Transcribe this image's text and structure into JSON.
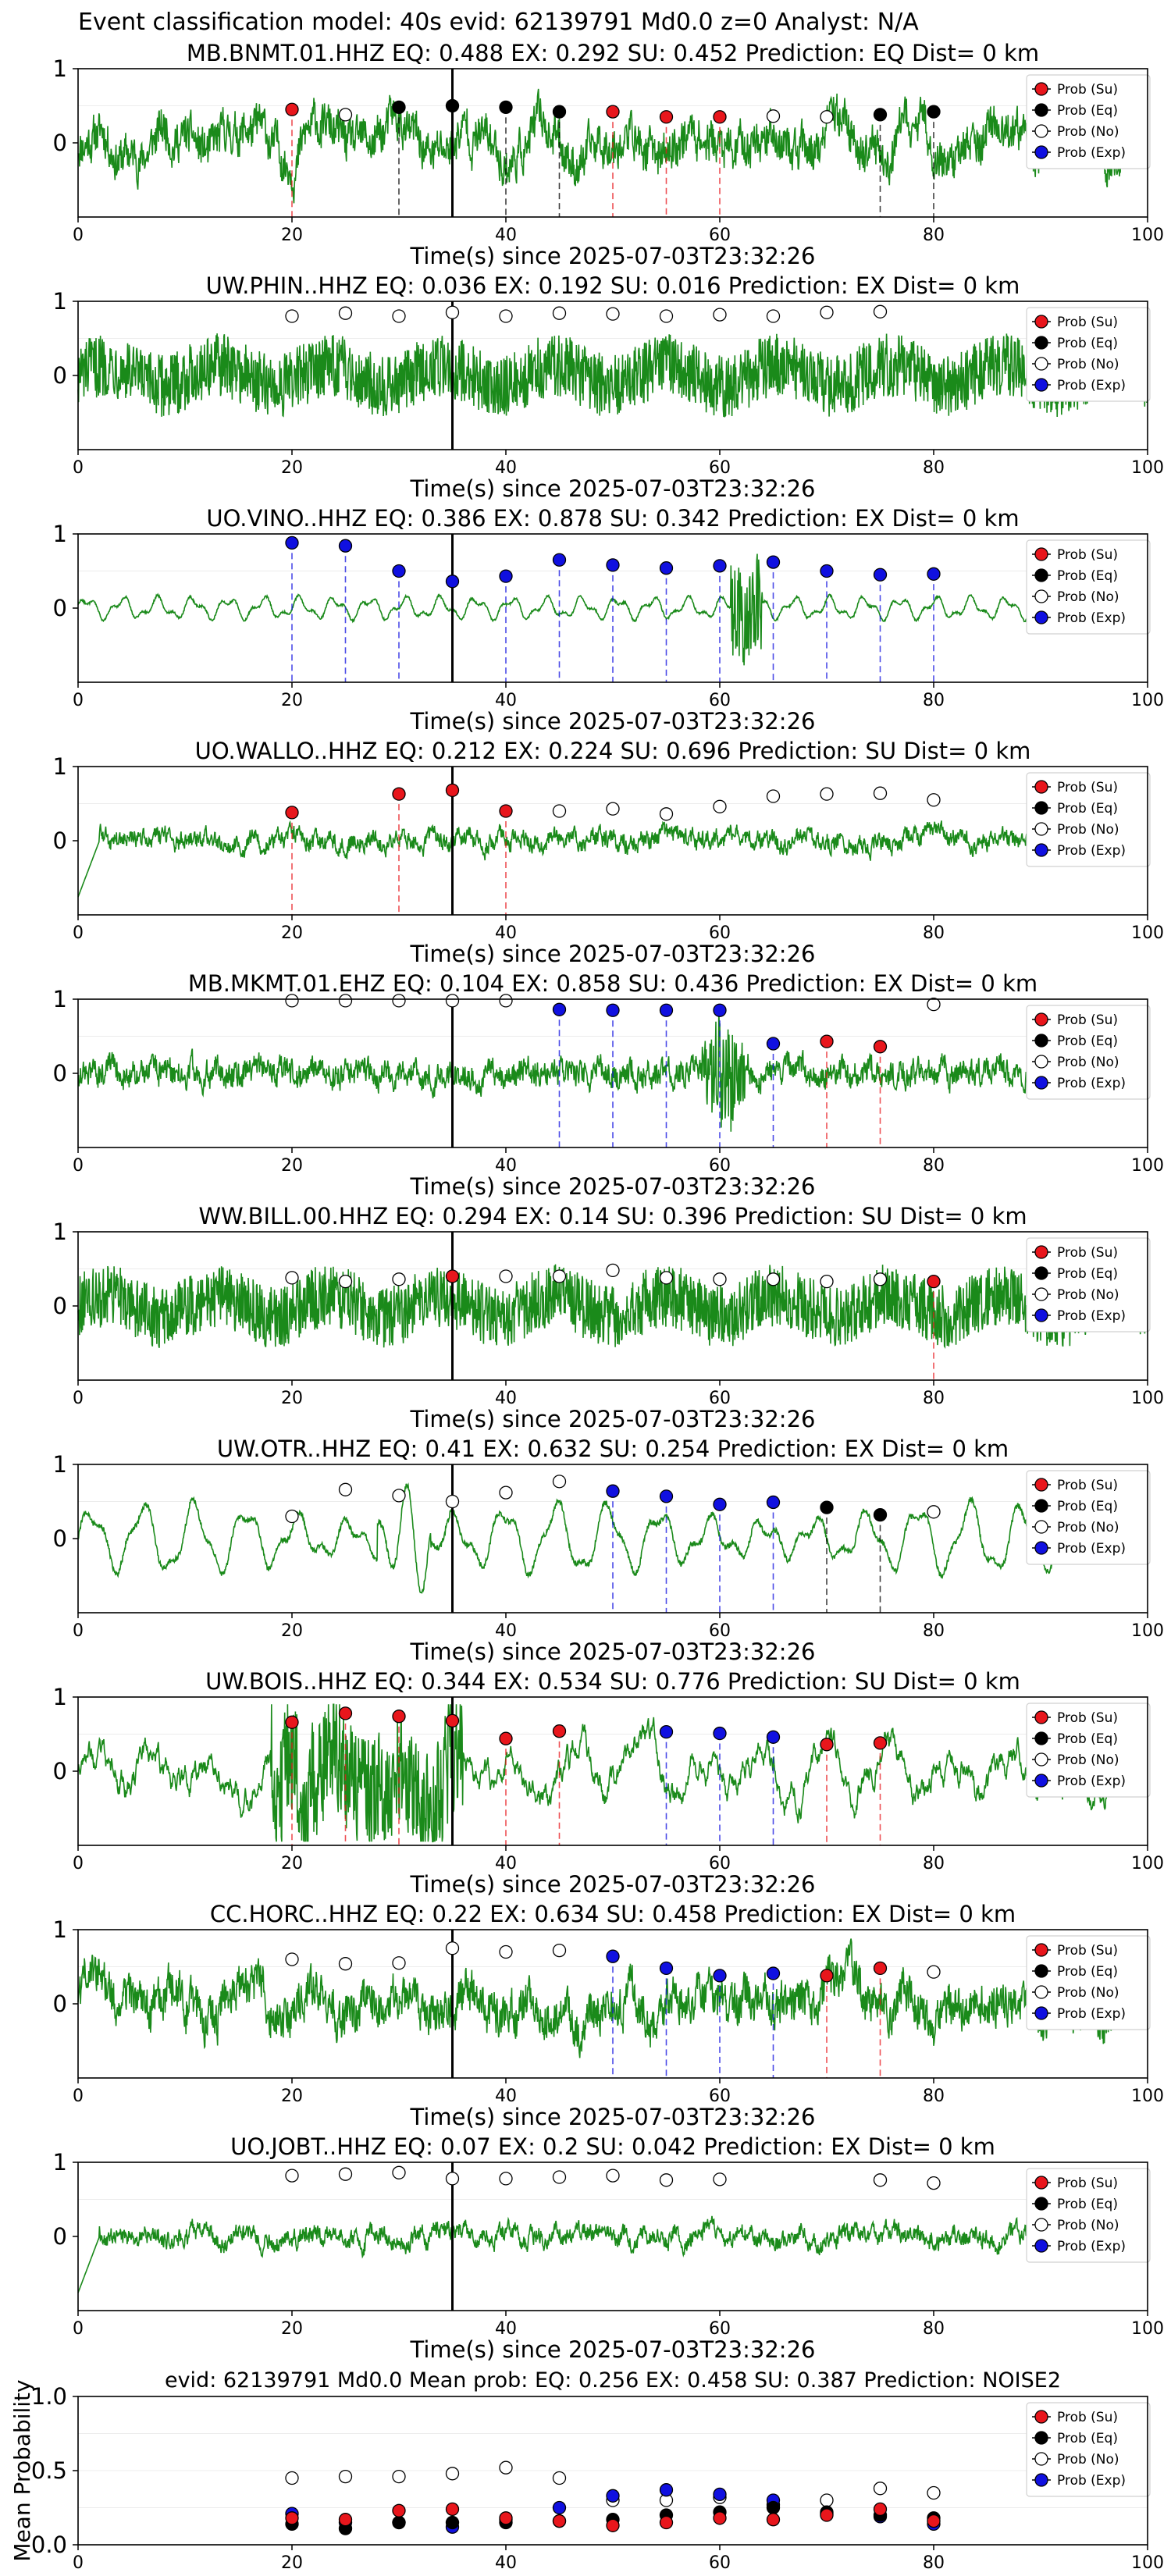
{
  "figure": {
    "title": "Event classification model: 40s evid: 62139791 Md0.0 z=0 Analyst: N/A"
  },
  "legend_labels": [
    "Prob (Su)",
    "Prob (Eq)",
    "Prob (No)",
    "Prob (Exp)"
  ],
  "colors": {
    "su": "#e8161c",
    "eq": "#000000",
    "no": "#ffffff",
    "exp": "#1010e0",
    "waveform": "#1a8a1a"
  },
  "chart_data": [
    {
      "type": "line",
      "title": "MB.BNMT.01.HHZ   EQ: 0.488  EX: 0.292  SU: 0.452   Prediction: EQ    Dist= 0 km",
      "xlabel": "Time(s) since 2025-07-03T23:32:26",
      "xlim": [
        0,
        100
      ],
      "ylim": [
        -1,
        1
      ],
      "xticks": [
        "0",
        "20",
        "40",
        "60",
        "80",
        "100"
      ],
      "yticks": [
        "1",
        "0"
      ],
      "pick_time": 35,
      "style": "noisy",
      "points": [
        {
          "t": 20,
          "cls": "su",
          "p": 0.45
        },
        {
          "t": 25,
          "cls": "no",
          "p": 0.38
        },
        {
          "t": 30,
          "cls": "eq",
          "p": 0.48
        },
        {
          "t": 35,
          "cls": "eq",
          "p": 0.5
        },
        {
          "t": 40,
          "cls": "eq",
          "p": 0.48
        },
        {
          "t": 45,
          "cls": "eq",
          "p": 0.42
        },
        {
          "t": 50,
          "cls": "su",
          "p": 0.42
        },
        {
          "t": 55,
          "cls": "su",
          "p": 0.35
        },
        {
          "t": 60,
          "cls": "su",
          "p": 0.35
        },
        {
          "t": 65,
          "cls": "no",
          "p": 0.36
        },
        {
          "t": 70,
          "cls": "no",
          "p": 0.35
        },
        {
          "t": 75,
          "cls": "eq",
          "p": 0.38
        },
        {
          "t": 80,
          "cls": "eq",
          "p": 0.42
        }
      ]
    },
    {
      "type": "line",
      "title": "UW.PHIN..HHZ   EQ: 0.036  EX: 0.192  SU: 0.016   Prediction: EX    Dist= 0 km",
      "xlabel": "Time(s) since 2025-07-03T23:32:26",
      "xlim": [
        0,
        100
      ],
      "ylim": [
        -1,
        1
      ],
      "xticks": [
        "0",
        "20",
        "40",
        "60",
        "80",
        "100"
      ],
      "yticks": [
        "1",
        "0"
      ],
      "pick_time": 35,
      "style": "dense",
      "points": [
        {
          "t": 20,
          "cls": "no",
          "p": 0.8
        },
        {
          "t": 25,
          "cls": "no",
          "p": 0.84
        },
        {
          "t": 30,
          "cls": "no",
          "p": 0.8
        },
        {
          "t": 35,
          "cls": "no",
          "p": 0.85
        },
        {
          "t": 40,
          "cls": "no",
          "p": 0.8
        },
        {
          "t": 45,
          "cls": "no",
          "p": 0.84
        },
        {
          "t": 50,
          "cls": "no",
          "p": 0.83
        },
        {
          "t": 55,
          "cls": "no",
          "p": 0.8
        },
        {
          "t": 60,
          "cls": "no",
          "p": 0.82
        },
        {
          "t": 65,
          "cls": "no",
          "p": 0.8
        },
        {
          "t": 70,
          "cls": "no",
          "p": 0.85
        },
        {
          "t": 75,
          "cls": "no",
          "p": 0.86
        }
      ]
    },
    {
      "type": "line",
      "title": "UO.VINO..HHZ   EQ: 0.386  EX: 0.878  SU: 0.342   Prediction: EX    Dist= 0 km",
      "xlabel": "Time(s) since 2025-07-03T23:32:26",
      "xlim": [
        0,
        100
      ],
      "ylim": [
        -1,
        1
      ],
      "xticks": [
        "0",
        "20",
        "40",
        "60",
        "80",
        "100"
      ],
      "yticks": [
        "1",
        "0"
      ],
      "pick_time": 35,
      "style": "smooth",
      "points": [
        {
          "t": 20,
          "cls": "exp",
          "p": 0.88
        },
        {
          "t": 25,
          "cls": "exp",
          "p": 0.84
        },
        {
          "t": 30,
          "cls": "exp",
          "p": 0.5
        },
        {
          "t": 35,
          "cls": "exp",
          "p": 0.36
        },
        {
          "t": 40,
          "cls": "exp",
          "p": 0.43
        },
        {
          "t": 45,
          "cls": "exp",
          "p": 0.65
        },
        {
          "t": 50,
          "cls": "exp",
          "p": 0.58
        },
        {
          "t": 55,
          "cls": "exp",
          "p": 0.54
        },
        {
          "t": 60,
          "cls": "exp",
          "p": 0.57
        },
        {
          "t": 65,
          "cls": "exp",
          "p": 0.62
        },
        {
          "t": 70,
          "cls": "exp",
          "p": 0.5
        },
        {
          "t": 75,
          "cls": "exp",
          "p": 0.45
        },
        {
          "t": 80,
          "cls": "exp",
          "p": 0.46
        }
      ]
    },
    {
      "type": "line",
      "title": "UO.WALLO..HHZ   EQ: 0.212  EX: 0.224  SU: 0.696   Prediction: SU    Dist= 0 km",
      "xlabel": "Time(s) since 2025-07-03T23:32:26",
      "xlim": [
        0,
        100
      ],
      "ylim": [
        -1,
        1
      ],
      "xticks": [
        "0",
        "20",
        "40",
        "60",
        "80",
        "100"
      ],
      "yticks": [
        "1",
        "0"
      ],
      "pick_time": 35,
      "style": "low",
      "points": [
        {
          "t": 20,
          "cls": "su",
          "p": 0.38
        },
        {
          "t": 30,
          "cls": "su",
          "p": 0.63
        },
        {
          "t": 35,
          "cls": "su",
          "p": 0.68
        },
        {
          "t": 40,
          "cls": "su",
          "p": 0.4
        },
        {
          "t": 45,
          "cls": "no",
          "p": 0.4
        },
        {
          "t": 50,
          "cls": "no",
          "p": 0.43
        },
        {
          "t": 55,
          "cls": "no",
          "p": 0.36
        },
        {
          "t": 60,
          "cls": "no",
          "p": 0.46
        },
        {
          "t": 65,
          "cls": "no",
          "p": 0.6
        },
        {
          "t": 70,
          "cls": "no",
          "p": 0.63
        },
        {
          "t": 75,
          "cls": "no",
          "p": 0.64
        },
        {
          "t": 80,
          "cls": "no",
          "p": 0.55
        }
      ]
    },
    {
      "type": "line",
      "title": "MB.MKMT.01.EHZ   EQ: 0.104  EX: 0.858  SU: 0.436   Prediction: EX    Dist= 0 km",
      "xlabel": "Time(s) since 2025-07-03T23:32:26",
      "xlim": [
        0,
        100
      ],
      "ylim": [
        -1,
        1
      ],
      "xticks": [
        "0",
        "20",
        "40",
        "60",
        "80",
        "100"
      ],
      "yticks": [
        "1",
        "0"
      ],
      "pick_time": 35,
      "style": "burst",
      "points": [
        {
          "t": 20,
          "cls": "no",
          "p": 0.98
        },
        {
          "t": 25,
          "cls": "no",
          "p": 0.98
        },
        {
          "t": 30,
          "cls": "no",
          "p": 0.98
        },
        {
          "t": 35,
          "cls": "no",
          "p": 0.98
        },
        {
          "t": 40,
          "cls": "no",
          "p": 0.98
        },
        {
          "t": 45,
          "cls": "exp",
          "p": 0.86
        },
        {
          "t": 50,
          "cls": "exp",
          "p": 0.85
        },
        {
          "t": 55,
          "cls": "exp",
          "p": 0.85
        },
        {
          "t": 60,
          "cls": "exp",
          "p": 0.85
        },
        {
          "t": 65,
          "cls": "exp",
          "p": 0.4
        },
        {
          "t": 70,
          "cls": "su",
          "p": 0.43
        },
        {
          "t": 75,
          "cls": "su",
          "p": 0.36
        },
        {
          "t": 80,
          "cls": "no",
          "p": 0.93
        }
      ]
    },
    {
      "type": "line",
      "title": "WW.BILL.00.HHZ   EQ: 0.294  EX: 0.14  SU: 0.396   Prediction: SU    Dist= 0 km",
      "xlabel": "Time(s) since 2025-07-03T23:32:26",
      "xlim": [
        0,
        100
      ],
      "ylim": [
        -1,
        1
      ],
      "xticks": [
        "0",
        "20",
        "40",
        "60",
        "80",
        "100"
      ],
      "yticks": [
        "1",
        "0"
      ],
      "pick_time": 35,
      "style": "dense",
      "points": [
        {
          "t": 20,
          "cls": "no",
          "p": 0.38
        },
        {
          "t": 25,
          "cls": "no",
          "p": 0.33
        },
        {
          "t": 30,
          "cls": "no",
          "p": 0.36
        },
        {
          "t": 35,
          "cls": "su",
          "p": 0.4
        },
        {
          "t": 40,
          "cls": "no",
          "p": 0.4
        },
        {
          "t": 45,
          "cls": "no",
          "p": 0.4
        },
        {
          "t": 50,
          "cls": "no",
          "p": 0.48
        },
        {
          "t": 55,
          "cls": "no",
          "p": 0.38
        },
        {
          "t": 60,
          "cls": "no",
          "p": 0.36
        },
        {
          "t": 65,
          "cls": "no",
          "p": 0.36
        },
        {
          "t": 70,
          "cls": "no",
          "p": 0.33
        },
        {
          "t": 75,
          "cls": "no",
          "p": 0.36
        },
        {
          "t": 80,
          "cls": "su",
          "p": 0.33
        }
      ]
    },
    {
      "type": "line",
      "title": "UW.OTR..HHZ   EQ: 0.41  EX: 0.632  SU: 0.254   Prediction: EX    Dist= 0 km",
      "xlabel": "Time(s) since 2025-07-03T23:32:26",
      "xlim": [
        0,
        100
      ],
      "ylim": [
        -1,
        1
      ],
      "xticks": [
        "0",
        "20",
        "40",
        "60",
        "80",
        "100"
      ],
      "yticks": [
        "1",
        "0"
      ],
      "pick_time": 35,
      "style": "wave",
      "points": [
        {
          "t": 20,
          "cls": "no",
          "p": 0.3
        },
        {
          "t": 25,
          "cls": "no",
          "p": 0.66
        },
        {
          "t": 30,
          "cls": "no",
          "p": 0.58
        },
        {
          "t": 35,
          "cls": "no",
          "p": 0.5
        },
        {
          "t": 40,
          "cls": "no",
          "p": 0.62
        },
        {
          "t": 45,
          "cls": "no",
          "p": 0.77
        },
        {
          "t": 50,
          "cls": "exp",
          "p": 0.64
        },
        {
          "t": 55,
          "cls": "exp",
          "p": 0.57
        },
        {
          "t": 60,
          "cls": "exp",
          "p": 0.46
        },
        {
          "t": 65,
          "cls": "exp",
          "p": 0.49
        },
        {
          "t": 70,
          "cls": "eq",
          "p": 0.42
        },
        {
          "t": 75,
          "cls": "eq",
          "p": 0.32
        },
        {
          "t": 80,
          "cls": "no",
          "p": 0.36
        }
      ]
    },
    {
      "type": "line",
      "title": "UW.BOIS..HHZ   EQ: 0.344  EX: 0.534  SU: 0.776   Prediction: SU    Dist= 0 km",
      "xlabel": "Time(s) since 2025-07-03T23:32:26",
      "xlim": [
        0,
        100
      ],
      "ylim": [
        -1,
        1
      ],
      "xticks": [
        "0",
        "20",
        "40",
        "60",
        "80",
        "100"
      ],
      "yticks": [
        "1",
        "0"
      ],
      "pick_time": 35,
      "style": "quake",
      "points": [
        {
          "t": 20,
          "cls": "su",
          "p": 0.66
        },
        {
          "t": 25,
          "cls": "su",
          "p": 0.78
        },
        {
          "t": 30,
          "cls": "su",
          "p": 0.74
        },
        {
          "t": 35,
          "cls": "su",
          "p": 0.68
        },
        {
          "t": 40,
          "cls": "su",
          "p": 0.44
        },
        {
          "t": 45,
          "cls": "su",
          "p": 0.54
        },
        {
          "t": 55,
          "cls": "exp",
          "p": 0.53
        },
        {
          "t": 60,
          "cls": "exp",
          "p": 0.51
        },
        {
          "t": 65,
          "cls": "exp",
          "p": 0.46
        },
        {
          "t": 70,
          "cls": "su",
          "p": 0.36
        },
        {
          "t": 75,
          "cls": "su",
          "p": 0.38
        }
      ]
    },
    {
      "type": "line",
      "title": "CC.HORC..HHZ   EQ: 0.22  EX: 0.634  SU: 0.458   Prediction: EX    Dist= 0 km",
      "xlabel": "Time(s) since 2025-07-03T23:32:26",
      "xlim": [
        0,
        100
      ],
      "ylim": [
        -1,
        1
      ],
      "xticks": [
        "0",
        "20",
        "40",
        "60",
        "80",
        "100"
      ],
      "yticks": [
        "1",
        "0"
      ],
      "pick_time": 35,
      "style": "noisy",
      "points": [
        {
          "t": 20,
          "cls": "no",
          "p": 0.6
        },
        {
          "t": 25,
          "cls": "no",
          "p": 0.54
        },
        {
          "t": 30,
          "cls": "no",
          "p": 0.55
        },
        {
          "t": 35,
          "cls": "no",
          "p": 0.75
        },
        {
          "t": 40,
          "cls": "no",
          "p": 0.7
        },
        {
          "t": 45,
          "cls": "no",
          "p": 0.72
        },
        {
          "t": 50,
          "cls": "exp",
          "p": 0.64
        },
        {
          "t": 55,
          "cls": "exp",
          "p": 0.48
        },
        {
          "t": 60,
          "cls": "exp",
          "p": 0.38
        },
        {
          "t": 65,
          "cls": "exp",
          "p": 0.41
        },
        {
          "t": 70,
          "cls": "su",
          "p": 0.38
        },
        {
          "t": 75,
          "cls": "su",
          "p": 0.48
        },
        {
          "t": 80,
          "cls": "no",
          "p": 0.43
        }
      ]
    },
    {
      "type": "line",
      "title": "UO.JOBT..HHZ   EQ: 0.07  EX: 0.2  SU: 0.042   Prediction: EX    Dist= 0 km",
      "xlabel": "Time(s) since 2025-07-03T23:32:26",
      "xlim": [
        0,
        100
      ],
      "ylim": [
        -1,
        1
      ],
      "xticks": [
        "0",
        "20",
        "40",
        "60",
        "80",
        "100"
      ],
      "yticks": [
        "1",
        "0"
      ],
      "pick_time": 35,
      "style": "low",
      "points": [
        {
          "t": 20,
          "cls": "no",
          "p": 0.82
        },
        {
          "t": 25,
          "cls": "no",
          "p": 0.84
        },
        {
          "t": 30,
          "cls": "no",
          "p": 0.86
        },
        {
          "t": 35,
          "cls": "no",
          "p": 0.78
        },
        {
          "t": 40,
          "cls": "no",
          "p": 0.78
        },
        {
          "t": 45,
          "cls": "no",
          "p": 0.8
        },
        {
          "t": 50,
          "cls": "no",
          "p": 0.82
        },
        {
          "t": 55,
          "cls": "no",
          "p": 0.76
        },
        {
          "t": 60,
          "cls": "no",
          "p": 0.77
        },
        {
          "t": 75,
          "cls": "no",
          "p": 0.76
        },
        {
          "t": 80,
          "cls": "no",
          "p": 0.72
        }
      ]
    },
    {
      "type": "scatter",
      "title": "evid: 62139791  Md0.0   Mean prob:   EQ: 0.256  EX: 0.458  SU: 0.387   Prediction: NOISE2",
      "ylabel": "Mean Probability",
      "xlim": [
        0,
        100
      ],
      "ylim": [
        0,
        1
      ],
      "xticks": [
        "0",
        "20",
        "40",
        "60",
        "80",
        "100"
      ],
      "yticks": [
        "0.0",
        "0.5",
        "1.0"
      ],
      "x": [
        20,
        25,
        30,
        35,
        40,
        45,
        50,
        55,
        60,
        65,
        70,
        75,
        80
      ],
      "series": [
        {
          "name": "Prob (Su)",
          "cls": "su",
          "values": [
            0.18,
            0.17,
            0.23,
            0.24,
            0.18,
            0.16,
            0.13,
            0.15,
            0.18,
            0.17,
            0.2,
            0.24,
            0.16
          ]
        },
        {
          "name": "Prob (Eq)",
          "cls": "eq",
          "values": [
            0.14,
            0.11,
            0.15,
            0.15,
            0.15,
            0.16,
            0.17,
            0.2,
            0.22,
            0.25,
            0.22,
            0.2,
            0.18
          ]
        },
        {
          "name": "Prob (No)",
          "cls": "no",
          "values": [
            0.45,
            0.46,
            0.46,
            0.48,
            0.52,
            0.45,
            0.3,
            0.3,
            0.32,
            0.27,
            0.3,
            0.38,
            0.35
          ]
        },
        {
          "name": "Prob (Exp)",
          "cls": "exp",
          "values": [
            0.21,
            0.15,
            0.15,
            0.12,
            0.17,
            0.25,
            0.33,
            0.37,
            0.34,
            0.3,
            0.21,
            0.19,
            0.14
          ]
        }
      ]
    }
  ]
}
